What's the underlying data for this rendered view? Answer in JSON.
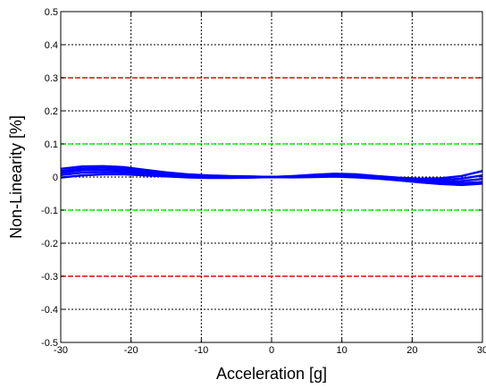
{
  "chart_data": {
    "type": "line",
    "xlabel": "Acceleration [g]",
    "ylabel": "Non-Linearity [%]",
    "xlim": [
      -30,
      30
    ],
    "ylim": [
      -0.5,
      0.5
    ],
    "xticks": [
      -30,
      -20,
      -10,
      0,
      10,
      20,
      30
    ],
    "xtick_labels": [
      "-30",
      "-20",
      "-10",
      "0",
      "10",
      "20",
      "30"
    ],
    "yticks": [
      -0.5,
      -0.4,
      -0.3,
      -0.2,
      -0.1,
      0,
      0.1,
      0.2,
      0.3,
      0.4,
      0.5
    ],
    "ytick_labels": [
      "-0.5",
      "-0.4",
      "-0.3",
      "-0.2",
      "-0.1",
      "0",
      "0.1",
      "0.2",
      "0.3",
      "0.4",
      "0.5"
    ],
    "grid": true,
    "limits": [
      {
        "value": 0.3,
        "color": "#ff0000"
      },
      {
        "value": -0.3,
        "color": "#ff0000"
      },
      {
        "value": 0.1,
        "color": "#00ff00"
      },
      {
        "value": -0.1,
        "color": "#00ff00"
      }
    ],
    "series": [
      {
        "color": "#0000ff",
        "x": [
          -30,
          -27,
          -24,
          -21,
          -18,
          -15,
          -12,
          -9,
          -6,
          -3,
          0,
          3,
          6,
          9,
          12,
          15,
          18,
          21,
          24,
          27,
          30
        ],
        "y": [
          0.025,
          0.032,
          0.033,
          0.03,
          0.022,
          0.014,
          0.008,
          0.005,
          0.003,
          0.002,
          0,
          0.003,
          0.007,
          0.01,
          0.008,
          0.003,
          -0.002,
          -0.005,
          -0.004,
          0.003,
          0.018
        ]
      },
      {
        "color": "#0000ff",
        "x": [
          -30,
          -27,
          -24,
          -21,
          -18,
          -15,
          -12,
          -9,
          -6,
          -3,
          0,
          3,
          6,
          9,
          12,
          15,
          18,
          21,
          24,
          27,
          30
        ],
        "y": [
          0.018,
          0.026,
          0.028,
          0.025,
          0.018,
          0.011,
          0.005,
          0.003,
          0.002,
          0.001,
          0,
          0.002,
          0.005,
          0.007,
          0.005,
          0.001,
          -0.004,
          -0.008,
          -0.009,
          -0.005,
          0.005
        ]
      },
      {
        "color": "#0000ff",
        "x": [
          -30,
          -27,
          -24,
          -21,
          -18,
          -15,
          -12,
          -9,
          -6,
          -3,
          0,
          3,
          6,
          9,
          12,
          15,
          18,
          21,
          24,
          27,
          30
        ],
        "y": [
          0.012,
          0.02,
          0.022,
          0.02,
          0.014,
          0.008,
          0.003,
          0.001,
          0.0,
          0.0,
          0,
          0.001,
          0.003,
          0.005,
          0.003,
          -0.001,
          -0.006,
          -0.011,
          -0.014,
          -0.012,
          -0.006
        ]
      },
      {
        "color": "#0000ff",
        "x": [
          -30,
          -27,
          -24,
          -21,
          -18,
          -15,
          -12,
          -9,
          -6,
          -3,
          0,
          3,
          6,
          9,
          12,
          15,
          18,
          21,
          24,
          27,
          30
        ],
        "y": [
          0.006,
          0.013,
          0.015,
          0.014,
          0.01,
          0.005,
          0.001,
          -0.001,
          -0.002,
          -0.001,
          0,
          0.0,
          0.002,
          0.003,
          0.001,
          -0.003,
          -0.008,
          -0.014,
          -0.018,
          -0.018,
          -0.015
        ]
      },
      {
        "color": "#0000ff",
        "x": [
          -30,
          -27,
          -24,
          -21,
          -18,
          -15,
          -12,
          -9,
          -6,
          -3,
          0,
          3,
          6,
          9,
          12,
          15,
          18,
          21,
          24,
          27,
          30
        ],
        "y": [
          -0.002,
          0.005,
          0.008,
          0.008,
          0.005,
          0.002,
          -0.001,
          -0.003,
          -0.003,
          -0.002,
          0,
          -0.001,
          0.0,
          0.001,
          -0.001,
          -0.005,
          -0.01,
          -0.016,
          -0.021,
          -0.024,
          -0.02
        ]
      }
    ]
  }
}
